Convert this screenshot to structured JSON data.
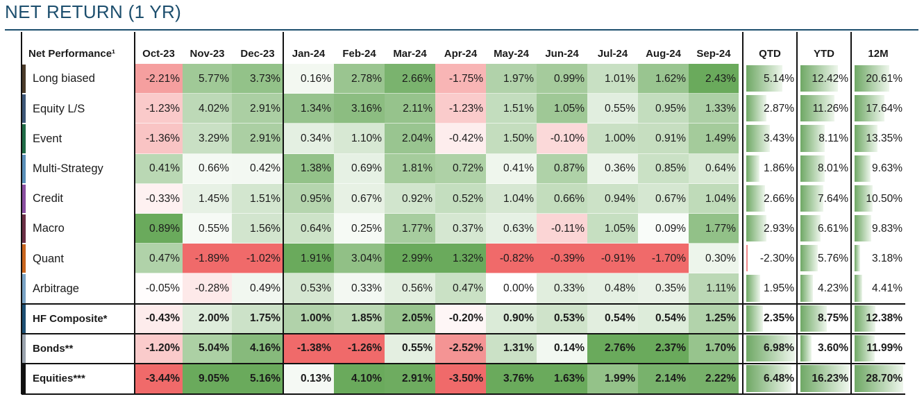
{
  "title": "NET RETURN (1 YR)",
  "colors": {
    "title": "#1c4e6d",
    "positive_max": "#6aaa5c",
    "negative_max": "#f06a6a",
    "neutral": "#ffffff",
    "bar_green": "#6fa865"
  },
  "chart_data": {
    "type": "table",
    "title": "NET RETURN (1 YR)",
    "columns": [
      "Net Performance¹",
      "Oct-23",
      "Nov-23",
      "Dec-23",
      "Jan-24",
      "Feb-24",
      "Mar-24",
      "Apr-24",
      "May-24",
      "Jun-24",
      "Jul-24",
      "Aug-24",
      "Sep-24",
      "QTD",
      "YTD",
      "12M"
    ],
    "rows": [
      {
        "name": "Long biased",
        "bold": false,
        "swatch": "#4a3b2a",
        "values": [
          "-2.21%",
          "5.77%",
          "3.73%",
          "0.16%",
          "2.78%",
          "2.66%",
          "-1.75%",
          "1.97%",
          "0.99%",
          "1.01%",
          "1.62%",
          "2.43%",
          "5.14%",
          "12.42%",
          "20.61%"
        ]
      },
      {
        "name": "Equity L/S",
        "bold": false,
        "swatch": "#3d5777",
        "values": [
          "-1.23%",
          "4.02%",
          "2.91%",
          "1.34%",
          "3.16%",
          "2.11%",
          "-1.23%",
          "1.51%",
          "1.05%",
          "0.55%",
          "0.95%",
          "1.33%",
          "2.87%",
          "11.26%",
          "17.64%"
        ]
      },
      {
        "name": "Event",
        "bold": false,
        "swatch": "#1f6b46",
        "values": [
          "-1.36%",
          "3.29%",
          "2.91%",
          "0.34%",
          "1.10%",
          "2.04%",
          "-0.42%",
          "1.50%",
          "-0.10%",
          "1.00%",
          "0.91%",
          "1.49%",
          "3.43%",
          "8.11%",
          "13.35%"
        ]
      },
      {
        "name": "Multi-Strategy",
        "bold": false,
        "swatch": "#5a8fb8",
        "values": [
          "0.41%",
          "0.66%",
          "0.42%",
          "1.38%",
          "0.69%",
          "1.81%",
          "0.72%",
          "0.41%",
          "0.87%",
          "0.36%",
          "0.85%",
          "0.64%",
          "1.86%",
          "8.01%",
          "9.63%"
        ]
      },
      {
        "name": "Credit",
        "bold": false,
        "swatch": "#8a4fa0",
        "values": [
          "-0.33%",
          "1.45%",
          "1.51%",
          "0.95%",
          "0.67%",
          "0.92%",
          "0.52%",
          "1.04%",
          "0.66%",
          "0.94%",
          "0.67%",
          "1.04%",
          "2.66%",
          "7.64%",
          "10.50%"
        ]
      },
      {
        "name": "Macro",
        "bold": false,
        "swatch": "#6b2f45",
        "values": [
          "0.89%",
          "0.55%",
          "1.56%",
          "0.64%",
          "0.25%",
          "1.77%",
          "0.37%",
          "0.63%",
          "-0.11%",
          "1.05%",
          "0.09%",
          "1.77%",
          "2.93%",
          "6.61%",
          "9.83%"
        ]
      },
      {
        "name": "Quant",
        "bold": false,
        "swatch": "#c8651f",
        "values": [
          "0.47%",
          "-1.89%",
          "-1.02%",
          "1.91%",
          "3.04%",
          "2.99%",
          "1.32%",
          "-0.82%",
          "-0.39%",
          "-0.91%",
          "-1.70%",
          "0.30%",
          "-2.30%",
          "5.76%",
          "3.18%"
        ]
      },
      {
        "name": "Arbitrage",
        "bold": false,
        "swatch": "#7aa3c4",
        "values": [
          "-0.05%",
          "-0.28%",
          "0.49%",
          "0.53%",
          "0.33%",
          "0.56%",
          "0.47%",
          "0.00%",
          "0.33%",
          "0.48%",
          "0.35%",
          "1.11%",
          "1.95%",
          "4.23%",
          "4.41%"
        ]
      },
      {
        "name": "HF Composite*",
        "bold": true,
        "swatch": "#1d4f73",
        "values": [
          "-0.43%",
          "2.00%",
          "1.75%",
          "1.00%",
          "1.85%",
          "2.05%",
          "-0.20%",
          "0.90%",
          "0.53%",
          "0.54%",
          "0.54%",
          "1.25%",
          "2.35%",
          "8.75%",
          "12.38%"
        ]
      },
      {
        "name": "Bonds**",
        "bold": true,
        "swatch": "#9aa3ad",
        "values": [
          "-1.20%",
          "5.04%",
          "4.16%",
          "-1.38%",
          "-1.26%",
          "0.55%",
          "-2.52%",
          "1.31%",
          "0.14%",
          "2.76%",
          "2.37%",
          "1.70%",
          "6.98%",
          "3.60%",
          "11.99%"
        ]
      },
      {
        "name": "Equities***",
        "bold": true,
        "swatch": "#111111",
        "values": [
          "-3.44%",
          "9.05%",
          "5.16%",
          "0.13%",
          "4.10%",
          "2.91%",
          "-3.50%",
          "3.76%",
          "1.63%",
          "1.99%",
          "2.14%",
          "2.22%",
          "6.48%",
          "16.23%",
          "28.70%"
        ]
      }
    ]
  }
}
